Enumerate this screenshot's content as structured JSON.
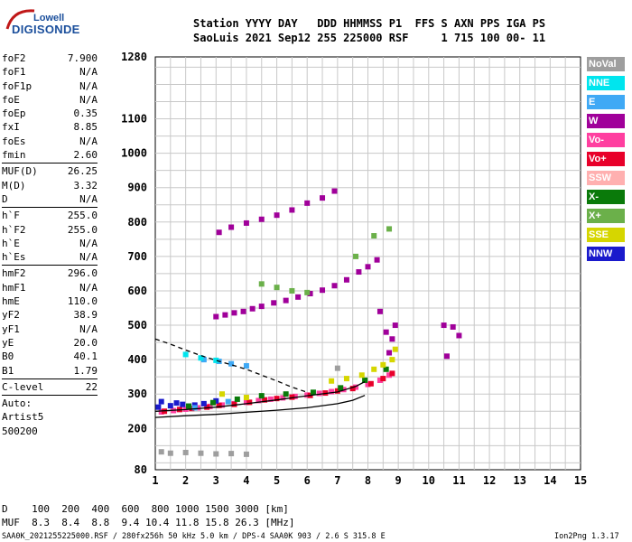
{
  "logo": {
    "top": "Lowell",
    "main": "DIGISONDE"
  },
  "header": {
    "line1": "Station YYYY DAY   DDD HHMMSS P1  FFS S AXN PPS IGA PS",
    "line2": "SaoLuis 2021 Sep12 255 225000 RSF     1 715 100 00- 11"
  },
  "params": [
    [
      {
        "label": "foF2",
        "value": "7.900"
      },
      {
        "label": "foF1",
        "value": "N/A"
      },
      {
        "label": "foF1p",
        "value": "N/A"
      },
      {
        "label": "foE",
        "value": "N/A"
      },
      {
        "label": "foEp",
        "value": "0.35"
      },
      {
        "label": "fxI",
        "value": "8.85"
      },
      {
        "label": "foEs",
        "value": "N/A"
      },
      {
        "label": "fmin",
        "value": "2.60"
      }
    ],
    [
      {
        "label": "MUF(D)",
        "value": "26.25"
      },
      {
        "label": "M(D)",
        "value": "3.32"
      },
      {
        "label": "D",
        "value": "N/A"
      }
    ],
    [
      {
        "label": "h`F",
        "value": "255.0"
      },
      {
        "label": "h`F2",
        "value": "255.0"
      },
      {
        "label": "h`E",
        "value": "N/A"
      },
      {
        "label": "h`Es",
        "value": "N/A"
      }
    ],
    [
      {
        "label": "hmF2",
        "value": "296.0"
      },
      {
        "label": "hmF1",
        "value": "N/A"
      },
      {
        "label": "hmE",
        "value": "110.0"
      },
      {
        "label": "yF2",
        "value": "38.9"
      },
      {
        "label": "yF1",
        "value": "N/A"
      },
      {
        "label": "yE",
        "value": "20.0"
      },
      {
        "label": "B0",
        "value": "40.1"
      },
      {
        "label": "B1",
        "value": "1.79"
      }
    ],
    [
      {
        "label": "C-level",
        "value": "22"
      }
    ]
  ],
  "autoscale": {
    "line1": "Auto:",
    "line2": "Artist5",
    "line3": "500200"
  },
  "legend": [
    {
      "label": "NoVal",
      "color": "#9e9e9e"
    },
    {
      "label": "NNE",
      "color": "#00e5ee"
    },
    {
      "label": "E",
      "color": "#3fa9f5"
    },
    {
      "label": "W",
      "color": "#a0009a"
    },
    {
      "label": "Vo-",
      "color": "#ff3fa0"
    },
    {
      "label": "Vo+",
      "color": "#e8002a"
    },
    {
      "label": "SSW",
      "color": "#ffb0b0"
    },
    {
      "label": "X-",
      "color": "#0a7a0a"
    },
    {
      "label": "X+",
      "color": "#6bb04a"
    },
    {
      "label": "SSE",
      "color": "#d6d600"
    },
    {
      "label": "NNW",
      "color": "#1a1acc"
    }
  ],
  "footer": {
    "d_line": "D    100  200  400  600  800 1000 1500 3000 [km]",
    "muf_line": "MUF  8.3  8.4  8.8  9.4 10.4 11.8 15.8 26.3 [MHz]",
    "source_line": "SAA0K_2021255225000.RSF / 280fx256h 50 kHz 5.0 km / DPS-4 SAA0K 903 / 2.6 S 315.8 E",
    "version": "Ion2Png 1.3.17"
  },
  "chart_data": {
    "type": "scatter",
    "xlim": [
      1,
      15
    ],
    "ylim": [
      80,
      1280
    ],
    "x_ticks": [
      "1",
      "2",
      "3",
      "4",
      "5",
      "6",
      "7",
      "8",
      "9",
      "10",
      "11",
      "12",
      "13",
      "14",
      "15"
    ],
    "y_tick_values": [
      80,
      200,
      300,
      400,
      500,
      600,
      700,
      800,
      900,
      1000,
      1100,
      1280
    ],
    "y_ticks": [
      "80",
      "200",
      "300",
      "400",
      "500",
      "600",
      "700",
      "800",
      "900",
      "1000",
      "1100",
      "1280"
    ],
    "series": [
      {
        "color": "#ff3fa0",
        "points": [
          [
            1.2,
            248
          ],
          [
            1.6,
            252
          ],
          [
            2.0,
            256
          ],
          [
            2.4,
            260
          ],
          [
            2.8,
            264
          ],
          [
            3.2,
            268
          ],
          [
            3.6,
            272
          ],
          [
            4.0,
            276
          ],
          [
            4.4,
            281
          ],
          [
            4.8,
            285
          ],
          [
            5.2,
            289
          ],
          [
            5.6,
            293
          ],
          [
            6.0,
            297
          ],
          [
            6.4,
            302
          ],
          [
            6.8,
            307
          ],
          [
            7.2,
            313
          ],
          [
            7.6,
            320
          ],
          [
            8.0,
            328
          ],
          [
            8.4,
            340
          ],
          [
            8.7,
            355
          ]
        ]
      },
      {
        "color": "#e8002a",
        "points": [
          [
            1.3,
            250
          ],
          [
            1.8,
            255
          ],
          [
            2.2,
            258
          ],
          [
            2.7,
            262
          ],
          [
            3.1,
            267
          ],
          [
            3.6,
            270
          ],
          [
            4.1,
            276
          ],
          [
            4.6,
            283
          ],
          [
            5.0,
            287
          ],
          [
            5.5,
            291
          ],
          [
            6.1,
            296
          ],
          [
            6.6,
            303
          ],
          [
            7.0,
            309
          ],
          [
            7.5,
            316
          ],
          [
            8.1,
            330
          ],
          [
            8.5,
            345
          ],
          [
            8.8,
            360
          ]
        ]
      },
      {
        "color": "#1a1acc",
        "points": [
          [
            1.1,
            262
          ],
          [
            1.5,
            266
          ],
          [
            1.9,
            270
          ],
          [
            2.3,
            268
          ],
          [
            1.2,
            278
          ],
          [
            1.7,
            274
          ],
          [
            2.6,
            272
          ],
          [
            3.0,
            280
          ]
        ]
      },
      {
        "color": "#0a7a0a",
        "points": [
          [
            2.1,
            265
          ],
          [
            2.9,
            275
          ],
          [
            3.7,
            285
          ],
          [
            4.5,
            295
          ],
          [
            5.3,
            300
          ],
          [
            6.2,
            305
          ],
          [
            7.1,
            318
          ],
          [
            7.9,
            340
          ],
          [
            8.6,
            372
          ]
        ]
      },
      {
        "color": "#d6d600",
        "points": [
          [
            6.8,
            338
          ],
          [
            7.3,
            345
          ],
          [
            7.8,
            355
          ],
          [
            8.2,
            372
          ],
          [
            8.5,
            385
          ],
          [
            8.8,
            400
          ],
          [
            8.9,
            430
          ],
          [
            3.2,
            300
          ],
          [
            4.0,
            290
          ]
        ]
      },
      {
        "color": "#a0009a",
        "points": [
          [
            3.0,
            525
          ],
          [
            3.3,
            530
          ],
          [
            3.6,
            536
          ],
          [
            3.9,
            540
          ],
          [
            4.2,
            548
          ],
          [
            4.5,
            555
          ],
          [
            4.9,
            565
          ],
          [
            5.3,
            572
          ],
          [
            5.7,
            582
          ],
          [
            6.1,
            592
          ],
          [
            6.5,
            602
          ],
          [
            6.9,
            615
          ],
          [
            7.3,
            632
          ],
          [
            7.7,
            655
          ],
          [
            8.0,
            670
          ],
          [
            8.3,
            690
          ],
          [
            3.1,
            770
          ],
          [
            3.5,
            785
          ],
          [
            4.0,
            797
          ],
          [
            4.5,
            808
          ],
          [
            5.0,
            820
          ],
          [
            5.5,
            835
          ],
          [
            6.0,
            855
          ],
          [
            6.5,
            870
          ],
          [
            6.9,
            890
          ],
          [
            8.7,
            420
          ],
          [
            8.8,
            460
          ],
          [
            8.9,
            500
          ],
          [
            10.5,
            500
          ],
          [
            10.8,
            495
          ],
          [
            11.0,
            470
          ],
          [
            10.6,
            410
          ],
          [
            8.6,
            480
          ],
          [
            8.4,
            540
          ]
        ]
      },
      {
        "color": "#3fa9f5",
        "points": [
          [
            2.6,
            400
          ],
          [
            3.1,
            395
          ],
          [
            3.5,
            388
          ],
          [
            4.0,
            382
          ],
          [
            2.3,
            260
          ],
          [
            3.4,
            278
          ]
        ]
      },
      {
        "color": "#6bb04a",
        "points": [
          [
            4.5,
            620
          ],
          [
            5.0,
            610
          ],
          [
            5.5,
            600
          ],
          [
            6.0,
            595
          ],
          [
            7.6,
            700
          ],
          [
            8.2,
            760
          ],
          [
            8.7,
            780
          ]
        ]
      },
      {
        "color": "#00e5ee",
        "points": [
          [
            2.0,
            415
          ],
          [
            2.5,
            405
          ],
          [
            3.0,
            398
          ]
        ]
      },
      {
        "color": "#9e9e9e",
        "points": [
          [
            1.5,
            128
          ],
          [
            2.0,
            130
          ],
          [
            2.5,
            128
          ],
          [
            3.0,
            126
          ],
          [
            3.5,
            127
          ],
          [
            4.0,
            125
          ],
          [
            1.2,
            132
          ],
          [
            7.0,
            375
          ]
        ]
      }
    ],
    "profile_lines": [
      {
        "style": "solid",
        "points": [
          [
            1.0,
            232
          ],
          [
            2.0,
            237
          ],
          [
            3.0,
            241
          ],
          [
            4.0,
            247
          ],
          [
            5.0,
            253
          ],
          [
            6.0,
            260
          ],
          [
            7.0,
            272
          ],
          [
            7.5,
            282
          ],
          [
            7.9,
            296
          ]
        ]
      },
      {
        "style": "solid",
        "points": [
          [
            1.0,
            250
          ],
          [
            2.0,
            255
          ],
          [
            3.0,
            262
          ],
          [
            4.0,
            272
          ],
          [
            5.0,
            283
          ],
          [
            6.0,
            295
          ],
          [
            7.0,
            306
          ],
          [
            7.6,
            322
          ],
          [
            7.9,
            336
          ]
        ]
      },
      {
        "style": "dashed",
        "points": [
          [
            1.0,
            460
          ],
          [
            1.5,
            445
          ],
          [
            2.0,
            428
          ],
          [
            2.5,
            412
          ],
          [
            3.0,
            398
          ],
          [
            3.5,
            385
          ],
          [
            4.0,
            372
          ],
          [
            4.5,
            355
          ],
          [
            5.0,
            338
          ],
          [
            5.5,
            320
          ],
          [
            6.0,
            305
          ]
        ]
      }
    ]
  }
}
